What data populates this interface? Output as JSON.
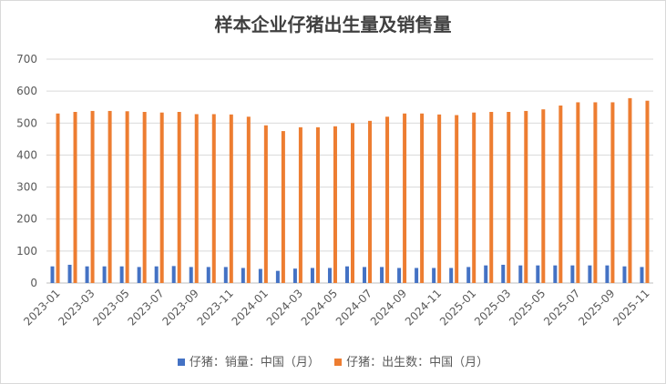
{
  "chart_data": {
    "type": "bar",
    "title": "样本企业仔猪出生量及销售量",
    "categories": [
      "2023-01",
      "2023-02",
      "2023-03",
      "2023-04",
      "2023-05",
      "2023-06",
      "2023-07",
      "2023-08",
      "2023-09",
      "2023-10",
      "2023-11",
      "2023-12",
      "2024-01",
      "2024-02",
      "2024-03",
      "2024-04",
      "2024-05",
      "2024-06",
      "2024-07",
      "2024-08",
      "2024-09",
      "2024-10",
      "2024-11",
      "2024-12",
      "2025-01",
      "2025-02",
      "2025-03",
      "2025-04",
      "2025-05",
      "2025-06",
      "2025-07",
      "2025-08",
      "2025-09",
      "2025-10",
      "2025-11"
    ],
    "tick_labels": [
      "2023-01",
      "2023-03",
      "2023-05",
      "2023-07",
      "2023-09",
      "2023-11",
      "2024-01",
      "2024-03",
      "2024-05",
      "2024-07",
      "2024-09",
      "2024-11",
      "2025-01",
      "2025-03",
      "2025-05",
      "2025-07",
      "2025-09",
      "2025-11"
    ],
    "series": [
      {
        "name": "仔猪：销量：中国（月）",
        "color": "#4472c4",
        "values": [
          52,
          57,
          52,
          52,
          52,
          50,
          52,
          53,
          50,
          50,
          50,
          47,
          44,
          38,
          45,
          47,
          47,
          52,
          50,
          50,
          47,
          47,
          47,
          47,
          50,
          55,
          57,
          55,
          55,
          55,
          55,
          55,
          55,
          52,
          50
        ]
      },
      {
        "name": "仔猪：出生数：中国（月）",
        "color": "#ed7d31",
        "values": [
          530,
          535,
          538,
          538,
          537,
          535,
          533,
          535,
          528,
          528,
          527,
          520,
          493,
          475,
          487,
          487,
          490,
          500,
          507,
          520,
          530,
          530,
          527,
          525,
          533,
          535,
          535,
          538,
          543,
          555,
          565,
          565,
          565,
          578,
          570
        ]
      }
    ],
    "yticks": [
      0,
      100,
      200,
      300,
      400,
      500,
      600,
      700
    ],
    "ylim": [
      0,
      700
    ],
    "grid": true,
    "legend_position": "bottom"
  }
}
